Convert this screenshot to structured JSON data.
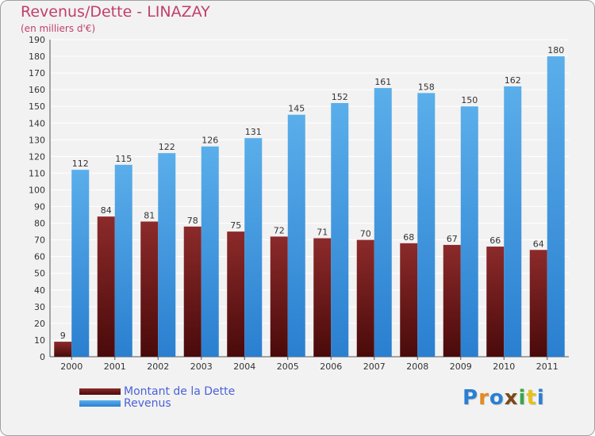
{
  "title": "Revenus/Dette - LINAZAY",
  "subtitle": "(en milliers d'€)",
  "logo": {
    "text": "Proxiti",
    "letters": [
      "P",
      "r",
      "o",
      "x",
      "i",
      "t",
      "i"
    ],
    "colors": [
      "#2a7fd4",
      "#e58a1f",
      "#2a7fd4",
      "#7a4a1a",
      "#3aa64a",
      "#e5c01f",
      "#2a7fd4"
    ]
  },
  "colors": {
    "debt_top": "#8c2a2a",
    "debt_bottom": "#4a0a0a",
    "revenue_top": "#5aaeea",
    "revenue_bottom": "#2a7fd0",
    "grid": "#ffffff",
    "plot_bg": "#f2f2f2"
  },
  "chart_data": {
    "type": "bar",
    "title": "Revenus/Dette - LINAZAY",
    "ylabel": "(en milliers d'€)",
    "categories": [
      "2000",
      "2001",
      "2002",
      "2003",
      "2004",
      "2005",
      "2006",
      "2007",
      "2008",
      "2009",
      "2010",
      "2011"
    ],
    "series": [
      {
        "name": "Montant de la Dette",
        "values": [
          9,
          84,
          81,
          78,
          75,
          72,
          71,
          70,
          68,
          67,
          66,
          64
        ]
      },
      {
        "name": "Revenus",
        "values": [
          112,
          115,
          122,
          126,
          131,
          145,
          152,
          161,
          158,
          150,
          162,
          180
        ]
      }
    ],
    "ylim": [
      0,
      190
    ],
    "yticks": [
      0,
      10,
      20,
      30,
      40,
      50,
      60,
      70,
      80,
      90,
      100,
      110,
      120,
      130,
      140,
      150,
      160,
      170,
      180,
      190
    ],
    "grid": true,
    "legend": "bottom-left"
  }
}
